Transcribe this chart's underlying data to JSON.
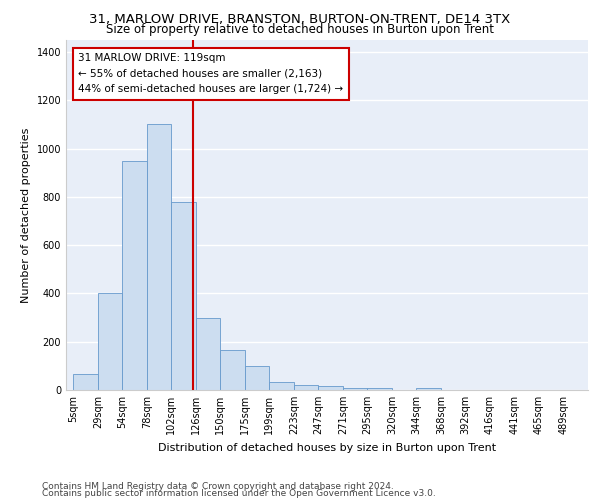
{
  "title_line1": "31, MARLOW DRIVE, BRANSTON, BURTON-ON-TRENT, DE14 3TX",
  "title_line2": "Size of property relative to detached houses in Burton upon Trent",
  "xlabel": "Distribution of detached houses by size in Burton upon Trent",
  "ylabel": "Number of detached properties",
  "categories": [
    "5sqm",
    "29sqm",
    "54sqm",
    "78sqm",
    "102sqm",
    "126sqm",
    "150sqm",
    "175sqm",
    "199sqm",
    "223sqm",
    "247sqm",
    "271sqm",
    "295sqm",
    "320sqm",
    "344sqm",
    "368sqm",
    "392sqm",
    "416sqm",
    "441sqm",
    "465sqm",
    "489sqm"
  ],
  "bar_heights": [
    65,
    400,
    950,
    1100,
    780,
    300,
    165,
    100,
    35,
    20,
    15,
    10,
    10,
    0,
    10,
    0,
    0,
    0,
    0,
    0,
    0
  ],
  "bar_color": "#ccddf0",
  "bar_edge_color": "#6699cc",
  "vline_color": "#cc0000",
  "vline_x": 4.9,
  "annotation_text": "31 MARLOW DRIVE: 119sqm\n← 55% of detached houses are smaller (2,163)\n44% of semi-detached houses are larger (1,724) →",
  "annotation_box_facecolor": "#ffffff",
  "annotation_box_edgecolor": "#cc0000",
  "ylim": [
    0,
    1450
  ],
  "yticks": [
    0,
    200,
    400,
    600,
    800,
    1000,
    1200,
    1400
  ],
  "footer_line1": "Contains HM Land Registry data © Crown copyright and database right 2024.",
  "footer_line2": "Contains public sector information licensed under the Open Government Licence v3.0.",
  "plot_bg_color": "#e8eef8",
  "grid_color": "#ffffff",
  "title1_fontsize": 9.5,
  "title2_fontsize": 8.5,
  "axis_label_fontsize": 8,
  "tick_fontsize": 7,
  "annot_fontsize": 7.5,
  "footer_fontsize": 6.5
}
